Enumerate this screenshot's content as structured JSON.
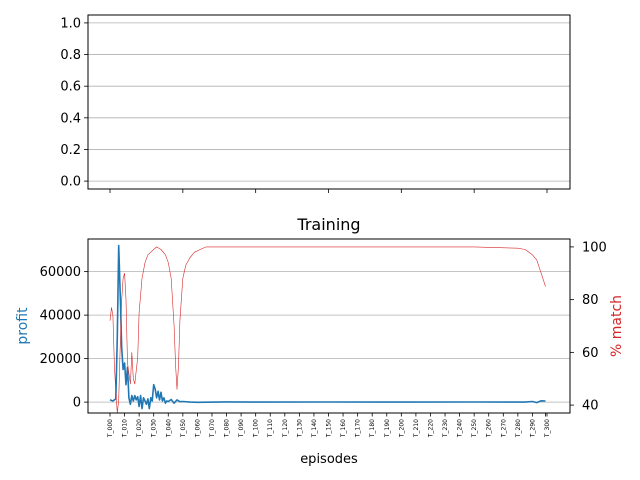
{
  "chart_data": [
    {
      "type": "line",
      "title": "",
      "xlabel": "",
      "ylabel": "",
      "ylim": [
        -0.05,
        1.05
      ],
      "yticks": [
        "0.0",
        "0.2",
        "0.4",
        "0.6",
        "0.8",
        "1.0"
      ],
      "grid": "horizontal",
      "series": []
    },
    {
      "type": "line",
      "title": "Training",
      "xlabel": "episodes",
      "ylabel": "profit",
      "ylabel_right": "% match",
      "ylim": [
        -5000,
        75000
      ],
      "ylim_right": [
        37,
        103
      ],
      "yticks": [
        "0",
        "20000",
        "40000",
        "60000"
      ],
      "yticks_right": [
        "40",
        "60",
        "80",
        "100"
      ],
      "grid": "horizontal",
      "colors": {
        "profit": "#1f77b4",
        "match": "#d62728"
      },
      "x_tick_labels": [
        "T_000",
        "T_010",
        "T_020",
        "T_030",
        "T_040",
        "T_050",
        "T_060",
        "T_070",
        "T_080",
        "T_090",
        "T_100",
        "T_110",
        "T_120",
        "T_130",
        "T_140",
        "T_150",
        "T_160",
        "T_170",
        "T_180",
        "T_190",
        "T_200",
        "T_210",
        "T_220",
        "T_230",
        "T_240",
        "T_250",
        "T_260",
        "T_270",
        "T_280",
        "T_290",
        "T_300"
      ],
      "x_count": 300,
      "series": [
        {
          "axis": "left",
          "points": [
            [
              0,
              1000
            ],
            [
              2,
              500
            ],
            [
              4,
              1500
            ],
            [
              5,
              30000
            ],
            [
              6,
              72000
            ],
            [
              7,
              50000
            ],
            [
              8,
              25000
            ],
            [
              9,
              15000
            ],
            [
              10,
              18000
            ],
            [
              11,
              8000
            ],
            [
              12,
              16000
            ],
            [
              13,
              2000
            ],
            [
              14,
              -1000
            ],
            [
              15,
              3000
            ],
            [
              16,
              500
            ],
            [
              17,
              3000
            ],
            [
              18,
              1000
            ],
            [
              19,
              2500
            ],
            [
              20,
              -2000
            ],
            [
              21,
              3000
            ],
            [
              22,
              -3000
            ],
            [
              23,
              2000
            ],
            [
              24,
              500
            ],
            [
              25,
              -1000
            ],
            [
              26,
              1500
            ],
            [
              27,
              -3000
            ],
            [
              28,
              2000
            ],
            [
              29,
              500
            ],
            [
              30,
              8000
            ],
            [
              31,
              6000
            ],
            [
              32,
              2000
            ],
            [
              33,
              5000
            ],
            [
              34,
              1000
            ],
            [
              35,
              4500
            ],
            [
              36,
              500
            ],
            [
              37,
              2000
            ],
            [
              38,
              -500
            ],
            [
              39,
              500
            ],
            [
              40,
              300
            ],
            [
              42,
              1200
            ],
            [
              44,
              -500
            ],
            [
              46,
              1000
            ],
            [
              48,
              200
            ],
            [
              50,
              300
            ],
            [
              55,
              0
            ],
            [
              60,
              -100
            ],
            [
              80,
              100
            ],
            [
              100,
              0
            ],
            [
              150,
              50
            ],
            [
              200,
              0
            ],
            [
              250,
              50
            ],
            [
              285,
              0
            ],
            [
              290,
              300
            ],
            [
              293,
              -200
            ],
            [
              296,
              600
            ],
            [
              299,
              500
            ]
          ]
        },
        {
          "axis": "right",
          "points": [
            [
              0,
              72
            ],
            [
              1,
              77
            ],
            [
              2,
              74
            ],
            [
              3,
              55
            ],
            [
              4,
              45
            ],
            [
              5,
              37
            ],
            [
              6,
              42
            ],
            [
              7,
              62
            ],
            [
              8,
              80
            ],
            [
              9,
              88
            ],
            [
              10,
              90
            ],
            [
              11,
              80
            ],
            [
              12,
              56
            ],
            [
              13,
              52
            ],
            [
              14,
              48
            ],
            [
              15,
              60
            ],
            [
              16,
              50
            ],
            [
              17,
              48
            ],
            [
              18,
              53
            ],
            [
              19,
              58
            ],
            [
              20,
              75
            ],
            [
              22,
              88
            ],
            [
              24,
              94
            ],
            [
              26,
              97
            ],
            [
              28,
              98
            ],
            [
              30,
              99
            ],
            [
              32,
              100
            ],
            [
              35,
              99
            ],
            [
              38,
              97
            ],
            [
              40,
              94
            ],
            [
              42,
              88
            ],
            [
              44,
              70
            ],
            [
              45,
              55
            ],
            [
              46,
              46
            ],
            [
              47,
              55
            ],
            [
              48,
              72
            ],
            [
              50,
              88
            ],
            [
              52,
              93
            ],
            [
              55,
              96
            ],
            [
              58,
              98
            ],
            [
              62,
              99
            ],
            [
              66,
              100
            ],
            [
              80,
              100
            ],
            [
              100,
              100
            ],
            [
              150,
              100
            ],
            [
              200,
              100
            ],
            [
              250,
              100
            ],
            [
              280,
              99.5
            ],
            [
              285,
              99
            ],
            [
              290,
              97
            ],
            [
              293,
              95
            ],
            [
              296,
              90
            ],
            [
              299,
              85
            ]
          ]
        }
      ]
    }
  ]
}
